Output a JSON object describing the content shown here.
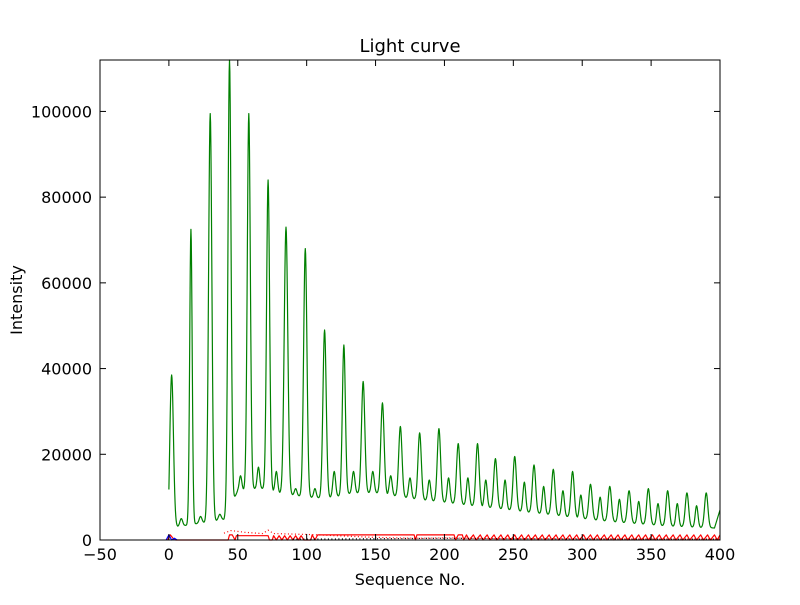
{
  "chart_data": {
    "type": "line",
    "title": "Light curve",
    "xlabel": "Sequence No.",
    "ylabel": "Intensity",
    "xlim": [
      -50,
      400
    ],
    "ylim": [
      0,
      112000
    ],
    "grid": false,
    "xticks": [
      -50,
      0,
      50,
      100,
      150,
      200,
      250,
      300,
      350,
      400
    ],
    "yticks": [
      0,
      20000,
      40000,
      60000,
      80000,
      100000
    ],
    "xtick_labels": [
      "−50",
      "0",
      "50",
      "100",
      "150",
      "200",
      "250",
      "300",
      "350",
      "400"
    ],
    "ytick_labels": [
      "0",
      "20000",
      "40000",
      "60000",
      "80000",
      "100000"
    ],
    "series": [
      {
        "color": "#008000",
        "baseline_points": [
          [
            0,
            0
          ],
          [
            1,
            3500
          ],
          [
            3,
            3000
          ],
          [
            10,
            3300
          ],
          [
            20,
            3800
          ],
          [
            30,
            4300
          ],
          [
            40,
            4800
          ],
          [
            45,
            8000
          ],
          [
            50,
            11500
          ],
          [
            60,
            12000
          ],
          [
            70,
            12000
          ],
          [
            80,
            11000
          ],
          [
            90,
            10500
          ],
          [
            100,
            10000
          ],
          [
            110,
            9800
          ],
          [
            120,
            10000
          ],
          [
            130,
            10800
          ],
          [
            140,
            11000
          ],
          [
            150,
            11000
          ],
          [
            160,
            10500
          ],
          [
            170,
            10000
          ],
          [
            180,
            9500
          ],
          [
            200,
            8800
          ],
          [
            220,
            8000
          ],
          [
            240,
            7300
          ],
          [
            260,
            6500
          ],
          [
            280,
            5800
          ],
          [
            300,
            5000
          ],
          [
            320,
            4300
          ],
          [
            340,
            3800
          ],
          [
            360,
            3300
          ],
          [
            380,
            3000
          ],
          [
            396,
            2800
          ],
          [
            400,
            7000
          ]
        ],
        "peaks": [
          [
            2,
            38500,
            1.3
          ],
          [
            16,
            72500,
            0.9
          ],
          [
            30,
            99500,
            1.2
          ],
          [
            44,
            112000,
            1.1
          ],
          [
            58,
            99500,
            1.1
          ],
          [
            72,
            84000,
            1.1
          ],
          [
            85,
            73000,
            1.3
          ],
          [
            99,
            68000,
            1.2
          ],
          [
            113,
            49000,
            1.2
          ],
          [
            127,
            45500,
            1.1
          ],
          [
            141,
            37000,
            1.2
          ],
          [
            155,
            32000,
            1.2
          ],
          [
            168,
            26500,
            1.2
          ],
          [
            182,
            25000,
            1.2
          ],
          [
            196,
            26000,
            1.2
          ],
          [
            210,
            22500,
            1.2
          ],
          [
            224,
            22500,
            1.2
          ],
          [
            237,
            19000,
            1.2
          ],
          [
            251,
            19500,
            1.2
          ],
          [
            265,
            17500,
            1.2
          ],
          [
            279,
            16500,
            1.2
          ],
          [
            293,
            16000,
            1.2
          ],
          [
            306,
            13000,
            1.2
          ],
          [
            320,
            12500,
            1.2
          ],
          [
            334,
            11500,
            1.2
          ],
          [
            348,
            12000,
            1.2
          ],
          [
            362,
            11500,
            1.2
          ],
          [
            376,
            11000,
            1.2
          ],
          [
            390,
            11000,
            1.2
          ]
        ],
        "small_peaks": [
          [
            9,
            5000,
            1.0
          ],
          [
            23,
            5500,
            1.0
          ],
          [
            37,
            6000,
            1.0
          ],
          [
            52,
            15000,
            0.9
          ],
          [
            65,
            17000,
            0.9
          ],
          [
            78,
            16000,
            0.9
          ],
          [
            92,
            12000,
            0.9
          ],
          [
            106,
            12000,
            0.9
          ],
          [
            120,
            16000,
            1.0
          ],
          [
            134,
            16000,
            1.0
          ],
          [
            148,
            16000,
            1.0
          ],
          [
            161,
            15000,
            1.0
          ],
          [
            175,
            14500,
            1.0
          ],
          [
            189,
            14000,
            1.0
          ],
          [
            203,
            14500,
            1.0
          ],
          [
            217,
            14500,
            1.0
          ],
          [
            230,
            14000,
            1.0
          ],
          [
            244,
            14000,
            1.0
          ],
          [
            258,
            13500,
            1.0
          ],
          [
            272,
            12500,
            1.0
          ],
          [
            286,
            11500,
            1.0
          ],
          [
            299,
            10500,
            1.0
          ],
          [
            313,
            10000,
            1.0
          ],
          [
            327,
            9500,
            1.0
          ],
          [
            341,
            9000,
            1.0
          ],
          [
            355,
            8500,
            1.0
          ],
          [
            369,
            8500,
            1.0
          ],
          [
            383,
            8000,
            1.0
          ]
        ]
      },
      {
        "color": "#ff0000",
        "style": "solid",
        "points": [
          [
            -1,
            0
          ],
          [
            1,
            1200
          ],
          [
            3,
            400
          ],
          [
            5,
            0
          ],
          [
            43,
            0
          ],
          [
            44,
            1200
          ],
          [
            46,
            1200
          ],
          [
            48,
            0
          ],
          [
            49,
            1000
          ],
          [
            72,
            1000
          ],
          [
            73,
            0
          ],
          [
            75,
            0
          ],
          [
            76,
            1000
          ],
          [
            78,
            0
          ],
          [
            80,
            1000
          ],
          [
            82,
            0
          ],
          [
            84,
            1000
          ],
          [
            86,
            0
          ],
          [
            88,
            1000
          ],
          [
            90,
            0
          ],
          [
            92,
            1000
          ],
          [
            94,
            0
          ],
          [
            96,
            1000
          ],
          [
            98,
            0
          ],
          [
            103,
            0
          ],
          [
            104,
            1200
          ],
          [
            106,
            0
          ],
          [
            108,
            1200
          ],
          [
            110,
            1200
          ],
          [
            111,
            1200
          ],
          [
            178,
            1200
          ],
          [
            179,
            0
          ],
          [
            180,
            1200
          ],
          [
            207,
            1200
          ],
          [
            208,
            0
          ],
          [
            210,
            1200
          ],
          [
            213,
            1200
          ],
          [
            214,
            0
          ],
          [
            216,
            1200
          ],
          [
            218,
            0
          ],
          [
            221,
            1200
          ],
          [
            223,
            0
          ],
          [
            226,
            1200
          ],
          [
            228,
            0
          ],
          [
            231,
            1200
          ],
          [
            233,
            0
          ],
          [
            236,
            1200
          ],
          [
            238,
            0
          ],
          [
            241,
            1200
          ],
          [
            243,
            0
          ],
          [
            246,
            1200
          ],
          [
            248,
            0
          ],
          [
            251,
            1200
          ],
          [
            253,
            0
          ],
          [
            256,
            1200
          ],
          [
            258,
            0
          ],
          [
            261,
            1200
          ],
          [
            263,
            0
          ],
          [
            266,
            1200
          ],
          [
            268,
            0
          ],
          [
            271,
            1200
          ],
          [
            273,
            0
          ],
          [
            276,
            1200
          ],
          [
            278,
            0
          ],
          [
            281,
            1200
          ],
          [
            283,
            0
          ],
          [
            286,
            1200
          ],
          [
            288,
            0
          ],
          [
            291,
            1200
          ],
          [
            293,
            0
          ],
          [
            296,
            1200
          ],
          [
            298,
            0
          ],
          [
            301,
            1200
          ],
          [
            303,
            0
          ],
          [
            306,
            1200
          ],
          [
            308,
            0
          ],
          [
            311,
            1200
          ],
          [
            313,
            0
          ],
          [
            316,
            1200
          ],
          [
            318,
            0
          ],
          [
            321,
            1200
          ],
          [
            323,
            0
          ],
          [
            326,
            1200
          ],
          [
            328,
            0
          ],
          [
            331,
            1200
          ],
          [
            333,
            0
          ],
          [
            336,
            1200
          ],
          [
            338,
            0
          ],
          [
            341,
            1200
          ],
          [
            343,
            0
          ],
          [
            346,
            1200
          ],
          [
            348,
            0
          ],
          [
            351,
            1200
          ],
          [
            353,
            0
          ],
          [
            356,
            1200
          ],
          [
            358,
            0
          ],
          [
            361,
            1200
          ],
          [
            363,
            0
          ],
          [
            366,
            1200
          ],
          [
            368,
            0
          ],
          [
            371,
            1200
          ],
          [
            373,
            0
          ],
          [
            376,
            1200
          ],
          [
            378,
            0
          ],
          [
            381,
            1200
          ],
          [
            383,
            0
          ],
          [
            386,
            1200
          ],
          [
            388,
            0
          ],
          [
            391,
            1200
          ],
          [
            393,
            0
          ],
          [
            396,
            1200
          ],
          [
            398,
            0
          ],
          [
            400,
            1200
          ]
        ]
      },
      {
        "color": "#ff0000",
        "style": "dotted",
        "points": [
          [
            40,
            1600
          ],
          [
            45,
            2200
          ],
          [
            55,
            1800
          ],
          [
            68,
            1500
          ],
          [
            72,
            2300
          ],
          [
            76,
            1500
          ],
          [
            100,
            1300
          ],
          [
            150,
            600
          ],
          [
            180,
            400
          ],
          [
            200,
            500
          ],
          [
            240,
            300
          ],
          [
            300,
            300
          ],
          [
            350,
            200
          ],
          [
            400,
            200
          ]
        ]
      },
      {
        "color": "#0000ff",
        "style": "solid",
        "points": [
          [
            -2,
            0
          ],
          [
            0,
            1200
          ],
          [
            2,
            0
          ],
          [
            4,
            400
          ],
          [
            6,
            0
          ]
        ]
      },
      {
        "color": "#000000",
        "style": "dotted",
        "points": [
          [
            90,
            200
          ],
          [
            150,
            300
          ],
          [
            200,
            400
          ],
          [
            250,
            300
          ],
          [
            300,
            250
          ],
          [
            350,
            200
          ],
          [
            400,
            200
          ]
        ]
      }
    ]
  }
}
